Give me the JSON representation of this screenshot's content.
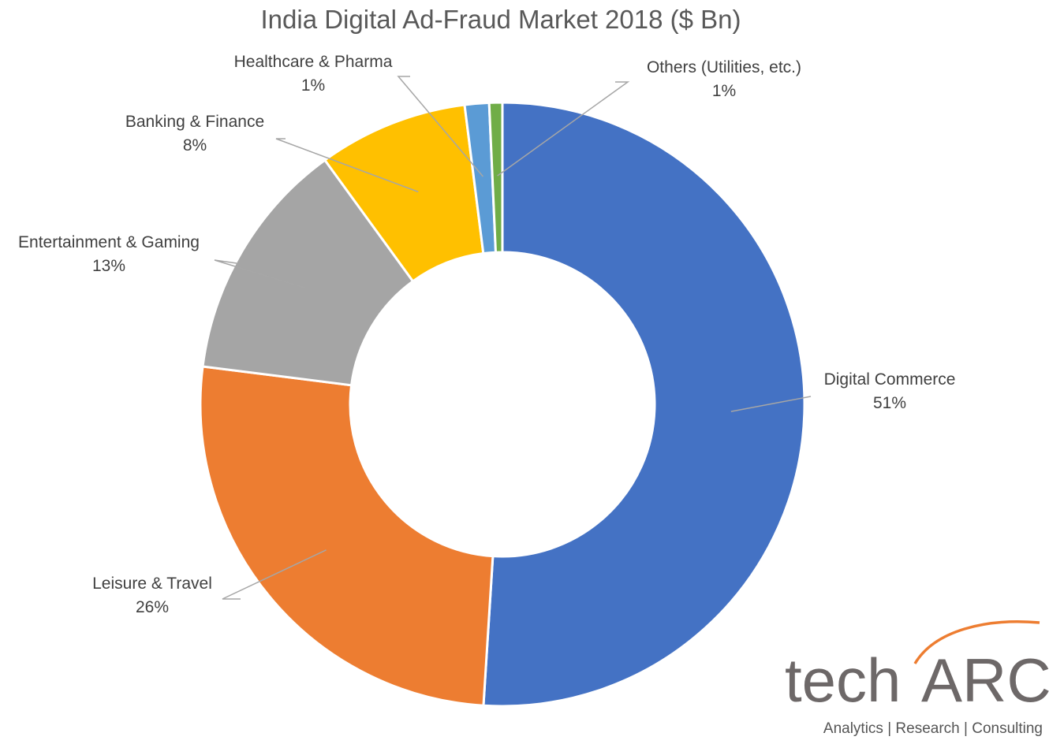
{
  "chart_data": {
    "type": "pie",
    "variant": "donut",
    "title": "India Digital Ad-Fraud Market 2018 ($ Bn)",
    "series": [
      {
        "name": "Digital Commerce",
        "value": 51,
        "label": "51%",
        "color": "#4472C4"
      },
      {
        "name": "Leisure & Travel",
        "value": 26,
        "label": "26%",
        "color": "#ED7D31"
      },
      {
        "name": "Entertainment & Gaming",
        "value": 13,
        "label": "13%",
        "color": "#A5A5A5"
      },
      {
        "name": "Banking & Finance",
        "value": 8,
        "label": "8%",
        "color": "#FFC000"
      },
      {
        "name": "Healthcare & Pharma",
        "value": 1.3,
        "label": "1%",
        "color": "#5B9BD5"
      },
      {
        "name": "Others (Utilities, etc.)",
        "value": 0.7,
        "label": "1%",
        "color": "#70AD47"
      }
    ],
    "legend": "none",
    "data_labels": "outside-with-leader-lines"
  },
  "branding": {
    "logo_word_1": "tech",
    "logo_word_2": "ARC",
    "tagline": "Analytics | Research | Consulting",
    "accent_color": "#ED7D31",
    "text_color": "#6D6868"
  }
}
